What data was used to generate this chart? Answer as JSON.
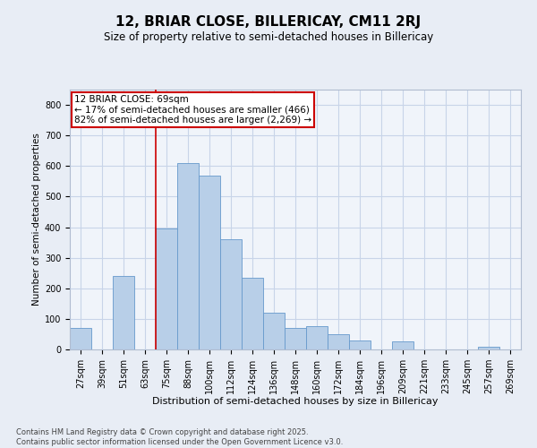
{
  "title1": "12, BRIAR CLOSE, BILLERICAY, CM11 2RJ",
  "title2": "Size of property relative to semi-detached houses in Billericay",
  "xlabel": "Distribution of semi-detached houses by size in Billericay",
  "ylabel": "Number of semi-detached properties",
  "categories": [
    "27sqm",
    "39sqm",
    "51sqm",
    "63sqm",
    "75sqm",
    "88sqm",
    "100sqm",
    "112sqm",
    "124sqm",
    "136sqm",
    "148sqm",
    "160sqm",
    "172sqm",
    "184sqm",
    "196sqm",
    "209sqm",
    "221sqm",
    "233sqm",
    "245sqm",
    "257sqm",
    "269sqm"
  ],
  "values": [
    70,
    0,
    240,
    0,
    395,
    610,
    570,
    360,
    235,
    120,
    70,
    75,
    50,
    30,
    0,
    25,
    0,
    0,
    0,
    10,
    0
  ],
  "bar_color": "#b8cfe8",
  "bar_edge_color": "#6699cc",
  "vline_color": "#cc0000",
  "annotation_text": "12 BRIAR CLOSE: 69sqm\n← 17% of semi-detached houses are smaller (466)\n82% of semi-detached houses are larger (2,269) →",
  "annotation_box_color": "#ffffff",
  "annotation_box_edge_color": "#cc0000",
  "ylim": [
    0,
    850
  ],
  "yticks": [
    0,
    100,
    200,
    300,
    400,
    500,
    600,
    700,
    800
  ],
  "grid_color": "#c8d4e8",
  "background_color": "#e8edf5",
  "plot_background": "#f0f4fa",
  "footnote": "Contains HM Land Registry data © Crown copyright and database right 2025.\nContains public sector information licensed under the Open Government Licence v3.0.",
  "title1_fontsize": 11,
  "title2_fontsize": 8.5,
  "xlabel_fontsize": 8,
  "ylabel_fontsize": 7.5,
  "tick_fontsize": 7,
  "annotation_fontsize": 7.5,
  "footnote_fontsize": 6
}
